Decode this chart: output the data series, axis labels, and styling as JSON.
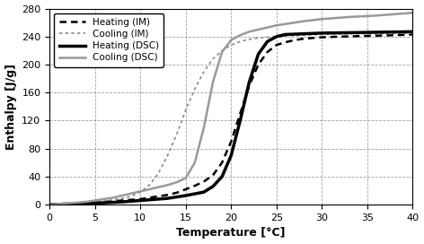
{
  "title": "",
  "xlabel": "Temperature [°C]",
  "ylabel": "Enthalpy [J/g]",
  "xlim": [
    0,
    40
  ],
  "ylim": [
    0,
    280
  ],
  "xticks": [
    0,
    5,
    10,
    15,
    20,
    25,
    30,
    35,
    40
  ],
  "yticks": [
    0,
    40,
    80,
    120,
    160,
    200,
    240,
    280
  ],
  "legend": {
    "entries": [
      "Heating (IM)",
      "Cooling (IM)",
      "Heating (DSC)",
      "Cooling (DSC)"
    ],
    "loc": "upper left"
  },
  "heating_IM_x": [
    0,
    1,
    2,
    3,
    4,
    5,
    6,
    7,
    8,
    9,
    10,
    11,
    12,
    13,
    14,
    15,
    16,
    17,
    18,
    19,
    20,
    21,
    22,
    23,
    24,
    25,
    26,
    27,
    28,
    29,
    30,
    32,
    35,
    38,
    40
  ],
  "heating_IM_y": [
    0,
    0.5,
    1,
    1.5,
    2,
    3,
    4,
    5,
    6,
    7,
    8,
    10,
    12,
    14,
    17,
    22,
    27,
    33,
    42,
    60,
    90,
    130,
    170,
    200,
    218,
    228,
    232,
    235,
    237,
    238,
    239,
    240,
    241,
    242,
    243
  ],
  "cooling_IM_x": [
    0,
    1,
    2,
    3,
    4,
    5,
    6,
    7,
    8,
    9,
    10,
    11,
    12,
    13,
    14,
    15,
    16,
    17,
    18,
    19,
    20,
    21,
    22,
    23,
    24,
    25,
    26,
    28,
    30,
    33,
    36,
    40
  ],
  "cooling_IM_y": [
    0,
    0.5,
    1,
    2,
    3,
    4,
    5,
    7,
    9,
    12,
    18,
    28,
    45,
    70,
    100,
    135,
    165,
    190,
    208,
    220,
    228,
    233,
    236,
    238,
    239,
    240,
    241,
    242,
    243,
    244,
    244,
    245
  ],
  "heating_DSC_x": [
    0,
    2,
    5,
    8,
    10,
    13,
    15,
    17,
    18,
    19,
    20,
    21,
    22,
    23,
    24,
    25,
    26,
    28,
    30,
    35,
    40
  ],
  "heating_DSC_y": [
    0,
    1,
    2,
    4,
    6,
    9,
    13,
    18,
    26,
    40,
    70,
    120,
    175,
    215,
    233,
    240,
    243,
    244,
    245,
    246,
    247
  ],
  "cooling_DSC_x": [
    0,
    1,
    2,
    3,
    4,
    5,
    6,
    7,
    8,
    9,
    10,
    11,
    12,
    13,
    14,
    15,
    16,
    17,
    18,
    19,
    20,
    21,
    22,
    23,
    24,
    25,
    26,
    27,
    28,
    30,
    33,
    36,
    40
  ],
  "cooling_DSC_y": [
    0,
    1,
    2,
    3,
    4,
    6,
    8,
    10,
    13,
    16,
    19,
    22,
    25,
    28,
    32,
    38,
    60,
    110,
    175,
    218,
    235,
    242,
    247,
    250,
    253,
    256,
    258,
    260,
    262,
    265,
    268,
    270,
    274
  ]
}
